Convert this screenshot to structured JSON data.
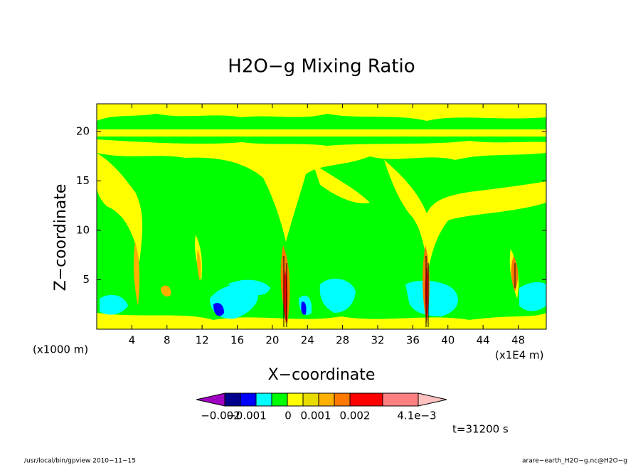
{
  "chart_data": {
    "type": "contour",
    "title": "H2O-g Mixing Ratio",
    "xlabel": "X-coordinate",
    "ylabel": "Z-coordinate",
    "y_unit": "(x1000 m)",
    "x_unit": "(x1E4 m)",
    "xlim": [
      0,
      51.2
    ],
    "ylim": [
      0,
      22.8
    ],
    "xticks": [
      4,
      8,
      12,
      16,
      20,
      24,
      28,
      32,
      36,
      40,
      44,
      48
    ],
    "yticks": [
      5,
      10,
      15,
      20
    ],
    "colorbar": {
      "colors": [
        "#a000c0",
        "#00008c",
        "#0000ff",
        "#00ffff",
        "#00ff00",
        "#ffff00",
        "#e6dc00",
        "#ffb000",
        "#ff7800",
        "#ff0000",
        "#ff8080",
        "#ffc0c0"
      ],
      "ticks": [
        -0.002,
        -0.001,
        0,
        0.001,
        0.002,
        {
          "value": 0.0041,
          "label": "4.1e-3"
        }
      ]
    },
    "annotation": "t=31200 s",
    "footer_left": "/usr/local/bin/gpview  2010-11-15",
    "footer_right": "arare-earth_H2O-g.nc@H2O-g"
  }
}
